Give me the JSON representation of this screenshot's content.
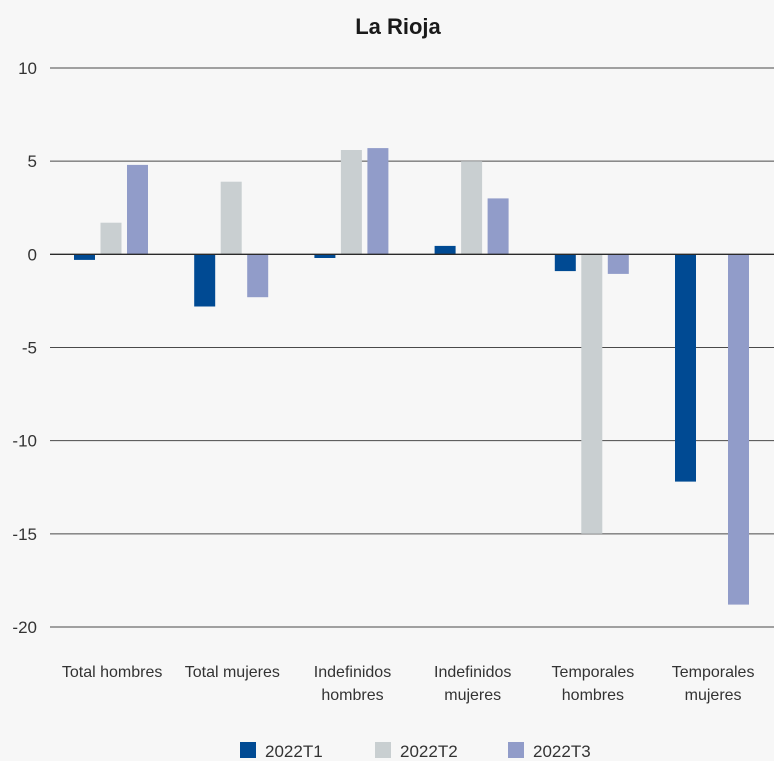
{
  "chart_data": {
    "type": "bar",
    "title": "La Rioja",
    "xlabel": "",
    "ylabel": "",
    "ylim": [
      -20,
      10
    ],
    "yticks": [
      10,
      5,
      0,
      -5,
      -10,
      -15,
      -20
    ],
    "ytick_labels": [
      "10",
      "5",
      "0",
      "-5",
      "-10",
      "-15",
      "-20"
    ],
    "grid": true,
    "legend_position": "bottom",
    "categories": [
      [
        "Total hombres"
      ],
      [
        "Total mujeres"
      ],
      [
        "Indefinidos",
        "hombres"
      ],
      [
        "Indefinidos",
        "mujeres"
      ],
      [
        "Temporales",
        "hombres"
      ],
      [
        "Temporales",
        "mujeres"
      ]
    ],
    "series": [
      {
        "name": "2022T1",
        "color": "#004a93",
        "values": [
          -0.3,
          -2.8,
          -0.2,
          0.45,
          -0.9,
          -12.2
        ]
      },
      {
        "name": "2022T2",
        "color": "#c9cfd1",
        "values": [
          1.7,
          3.9,
          5.6,
          5.0,
          -15.0,
          0
        ]
      },
      {
        "name": "2022T3",
        "color": "#919cc9",
        "values": [
          4.8,
          -2.3,
          5.7,
          3.0,
          -1.05,
          -18.8
        ]
      }
    ]
  }
}
